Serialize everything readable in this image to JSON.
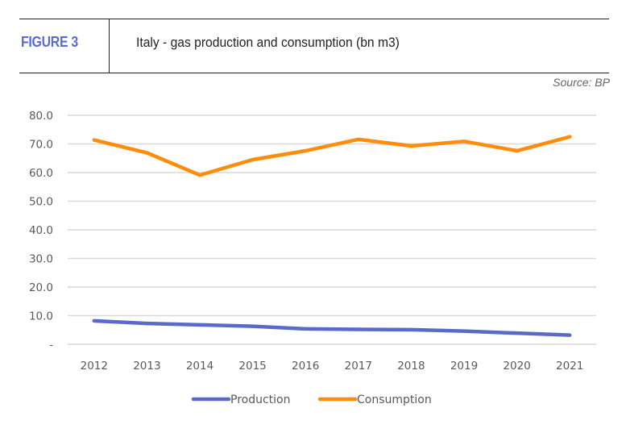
{
  "header": {
    "figure_label": "FIGURE 3",
    "title": "Italy - gas production and consumption (bn m3)",
    "source": "Source: BP"
  },
  "colors": {
    "figure_label": "#5b6ccb",
    "production": "#5a6acb",
    "consumption": "#ff8c0a",
    "grid": "#d9d9d9"
  },
  "chart_data": {
    "type": "line",
    "title": "Italy - gas production and consumption (bn m3)",
    "xlabel": "",
    "ylabel": "",
    "categories": [
      "2012",
      "2013",
      "2014",
      "2015",
      "2016",
      "2017",
      "2018",
      "2019",
      "2020",
      "2021"
    ],
    "series": [
      {
        "name": "Production",
        "color": "#5a6acb",
        "values": [
          8.2,
          7.3,
          6.8,
          6.3,
          5.4,
          5.2,
          5.1,
          4.6,
          3.9,
          3.2
        ]
      },
      {
        "name": "Consumption",
        "color": "#ff8c0a",
        "values": [
          71.4,
          66.9,
          59.1,
          64.5,
          67.6,
          71.6,
          69.3,
          70.9,
          67.6,
          72.5
        ]
      }
    ],
    "ylim": [
      0,
      80
    ],
    "yticks": [
      0,
      10,
      20,
      30,
      40,
      50,
      60,
      70,
      80
    ],
    "ytick_labels": [
      "-",
      "10.0",
      "20.0",
      "30.0",
      "40.0",
      "50.0",
      "60.0",
      "70.0",
      "80.0"
    ],
    "grid": true,
    "legend": {
      "position": "bottom",
      "entries": [
        "Production",
        "Consumption"
      ]
    },
    "source": "Source: BP"
  }
}
